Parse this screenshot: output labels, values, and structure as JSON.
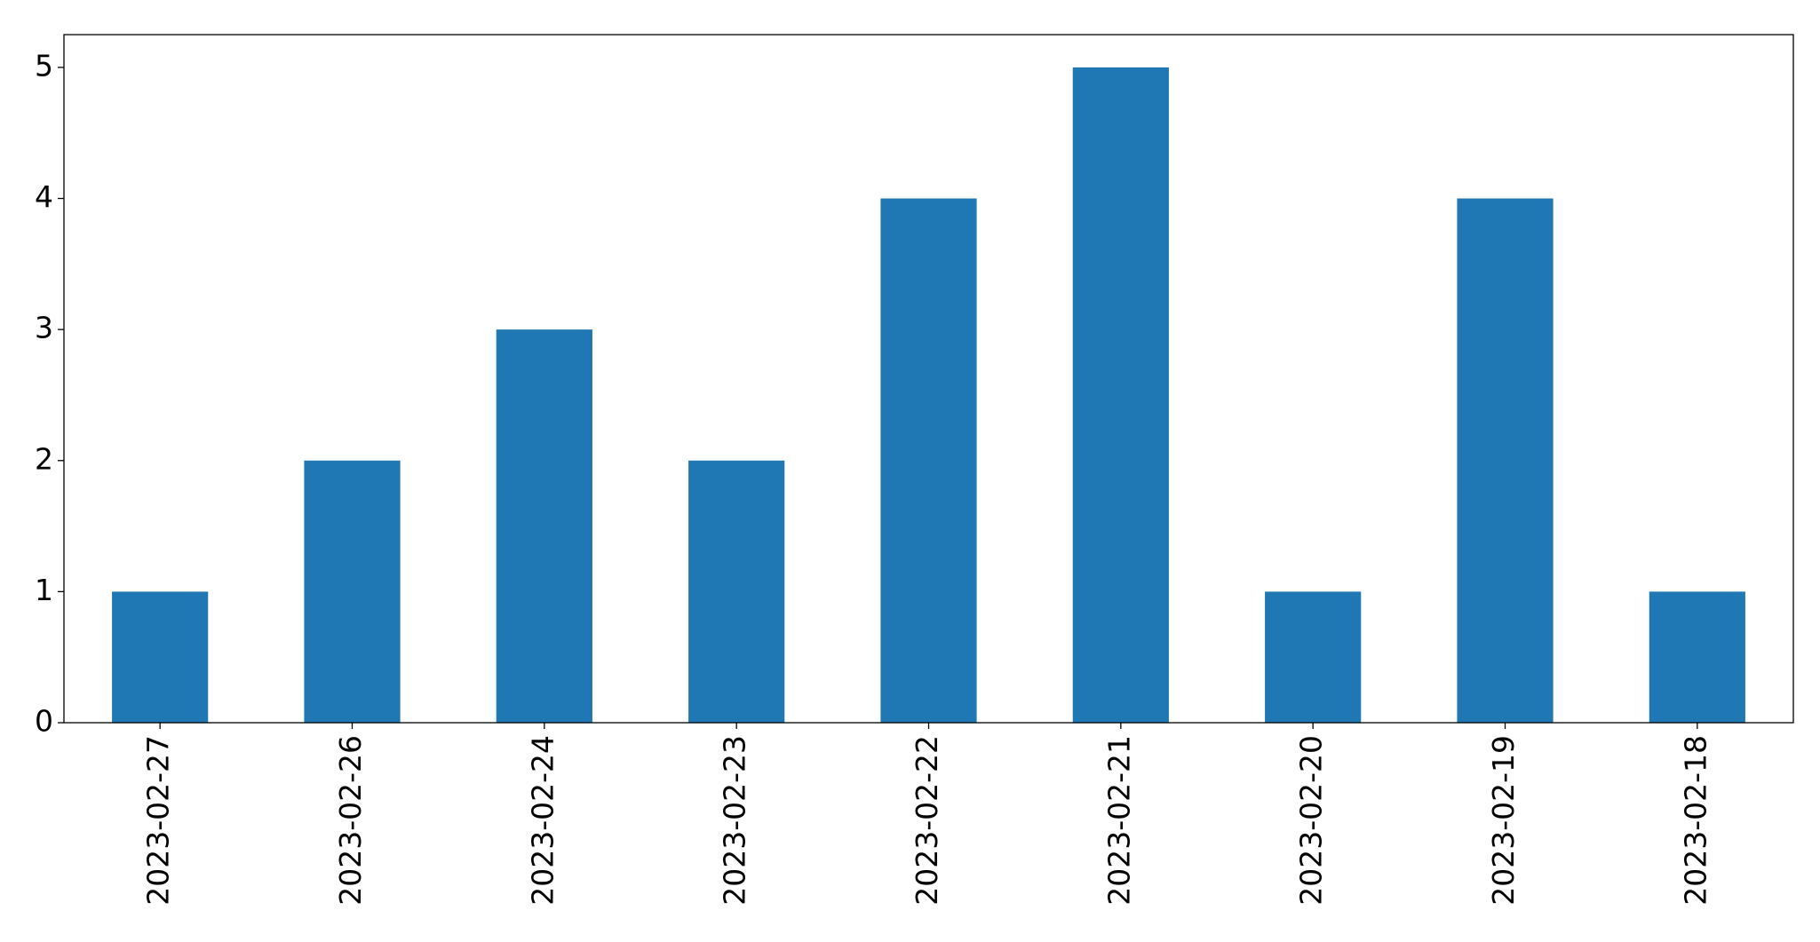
{
  "chart_data": {
    "type": "bar",
    "categories": [
      "2023-02-27",
      "2023-02-26",
      "2023-02-24",
      "2023-02-23",
      "2023-02-22",
      "2023-02-21",
      "2023-02-20",
      "2023-02-19",
      "2023-02-18"
    ],
    "values": [
      1,
      2,
      3,
      2,
      4,
      5,
      1,
      4,
      1
    ],
    "color": "#1f77b4",
    "ylim": [
      0,
      5.25
    ],
    "yticks": [
      0,
      1,
      2,
      3,
      4,
      5
    ],
    "grid": false
  }
}
